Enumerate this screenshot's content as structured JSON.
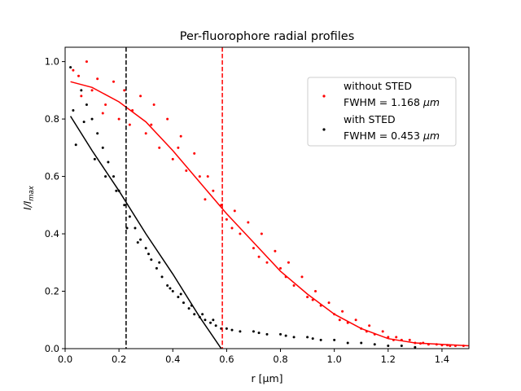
{
  "chart_data": {
    "type": "scatter",
    "title": "Per-fluorophore radial profiles",
    "xlabel": "r [μm]",
    "ylabel": "I/I",
    "ylabel_sub": "max",
    "xlim": [
      0.0,
      1.5
    ],
    "ylim": [
      0.0,
      1.05
    ],
    "xticks": [
      "0.0",
      "0.2",
      "0.4",
      "0.6",
      "0.8",
      "1.0",
      "1.2",
      "1.4"
    ],
    "yticks": [
      "0.0",
      "0.2",
      "0.4",
      "0.6",
      "0.8",
      "1.0"
    ],
    "grid": false,
    "legend_position": "upper-right",
    "series": [
      {
        "name": "without STED",
        "fwhm_label": "FWHM = 1.168",
        "fwhm_unit": "μm",
        "color": "#ff0000",
        "vline_x": 0.584,
        "fit": {
          "x": [
            0.02,
            0.1,
            0.2,
            0.3,
            0.4,
            0.5,
            0.6,
            0.7,
            0.8,
            0.9,
            1.0,
            1.1,
            1.2,
            1.3,
            1.4,
            1.5
          ],
          "y": [
            0.93,
            0.91,
            0.86,
            0.79,
            0.69,
            0.58,
            0.47,
            0.37,
            0.27,
            0.19,
            0.12,
            0.07,
            0.035,
            0.02,
            0.015,
            0.01
          ]
        },
        "points": {
          "x": [
            0.03,
            0.05,
            0.08,
            0.1,
            0.12,
            0.15,
            0.18,
            0.2,
            0.22,
            0.25,
            0.28,
            0.3,
            0.33,
            0.35,
            0.38,
            0.4,
            0.43,
            0.45,
            0.48,
            0.5,
            0.53,
            0.55,
            0.58,
            0.6,
            0.63,
            0.65,
            0.68,
            0.7,
            0.73,
            0.75,
            0.78,
            0.8,
            0.83,
            0.85,
            0.88,
            0.9,
            0.93,
            0.95,
            0.98,
            1.0,
            1.03,
            1.05,
            1.08,
            1.1,
            1.13,
            1.15,
            1.18,
            1.2,
            1.23,
            1.25,
            1.28,
            1.3,
            1.33,
            1.35,
            1.38,
            1.4,
            1.43,
            1.45,
            1.48,
            0.06,
            0.14,
            0.24,
            0.32,
            0.42,
            0.52,
            0.62,
            0.72,
            0.82,
            0.92,
            1.02,
            1.12,
            1.22,
            1.32,
            1.42
          ],
          "y": [
            0.97,
            0.95,
            1.0,
            0.9,
            0.94,
            0.85,
            0.93,
            0.8,
            0.9,
            0.83,
            0.88,
            0.75,
            0.85,
            0.7,
            0.8,
            0.66,
            0.74,
            0.62,
            0.68,
            0.6,
            0.6,
            0.55,
            0.5,
            0.45,
            0.48,
            0.4,
            0.44,
            0.35,
            0.4,
            0.3,
            0.34,
            0.28,
            0.3,
            0.22,
            0.25,
            0.18,
            0.2,
            0.15,
            0.16,
            0.12,
            0.13,
            0.09,
            0.1,
            0.07,
            0.08,
            0.05,
            0.06,
            0.04,
            0.04,
            0.03,
            0.03,
            0.02,
            0.02,
            0.015,
            0.015,
            0.012,
            0.01,
            0.01,
            0.01,
            0.88,
            0.82,
            0.78,
            0.78,
            0.7,
            0.52,
            0.42,
            0.32,
            0.25,
            0.17,
            0.1,
            0.06,
            0.03,
            0.018,
            0.012
          ]
        }
      },
      {
        "name": "with STED",
        "fwhm_label": "FWHM = 0.453",
        "fwhm_unit": "μm",
        "color": "#000000",
        "vline_x": 0.2265,
        "fit": {
          "x": [
            0.02,
            0.1,
            0.2,
            0.3,
            0.4,
            0.5,
            0.58
          ],
          "y": [
            0.81,
            0.69,
            0.55,
            0.4,
            0.26,
            0.11,
            0.0
          ]
        },
        "points": {
          "x": [
            0.02,
            0.04,
            0.06,
            0.08,
            0.1,
            0.12,
            0.14,
            0.16,
            0.18,
            0.2,
            0.22,
            0.24,
            0.26,
            0.28,
            0.3,
            0.32,
            0.34,
            0.36,
            0.38,
            0.4,
            0.42,
            0.44,
            0.46,
            0.48,
            0.5,
            0.52,
            0.54,
            0.56,
            0.58,
            0.6,
            0.65,
            0.7,
            0.75,
            0.8,
            0.85,
            0.9,
            0.95,
            1.0,
            1.05,
            1.1,
            1.15,
            1.2,
            1.25,
            1.3,
            0.03,
            0.07,
            0.11,
            0.15,
            0.19,
            0.23,
            0.27,
            0.31,
            0.35,
            0.39,
            0.43,
            0.47,
            0.51,
            0.55,
            0.62,
            0.72,
            0.82,
            0.92
          ],
          "y": [
            0.98,
            0.71,
            0.9,
            0.85,
            0.8,
            0.75,
            0.7,
            0.65,
            0.6,
            0.55,
            0.5,
            0.46,
            0.42,
            0.38,
            0.35,
            0.31,
            0.28,
            0.25,
            0.22,
            0.2,
            0.18,
            0.16,
            0.14,
            0.12,
            0.11,
            0.1,
            0.09,
            0.08,
            0.07,
            0.07,
            0.06,
            0.06,
            0.05,
            0.05,
            0.04,
            0.04,
            0.03,
            0.03,
            0.02,
            0.02,
            0.015,
            0.01,
            0.01,
            0.005,
            0.83,
            0.79,
            0.66,
            0.6,
            0.55,
            0.42,
            0.37,
            0.33,
            0.3,
            0.21,
            0.19,
            0.15,
            0.12,
            0.1,
            0.065,
            0.055,
            0.045,
            0.035
          ]
        }
      }
    ]
  }
}
